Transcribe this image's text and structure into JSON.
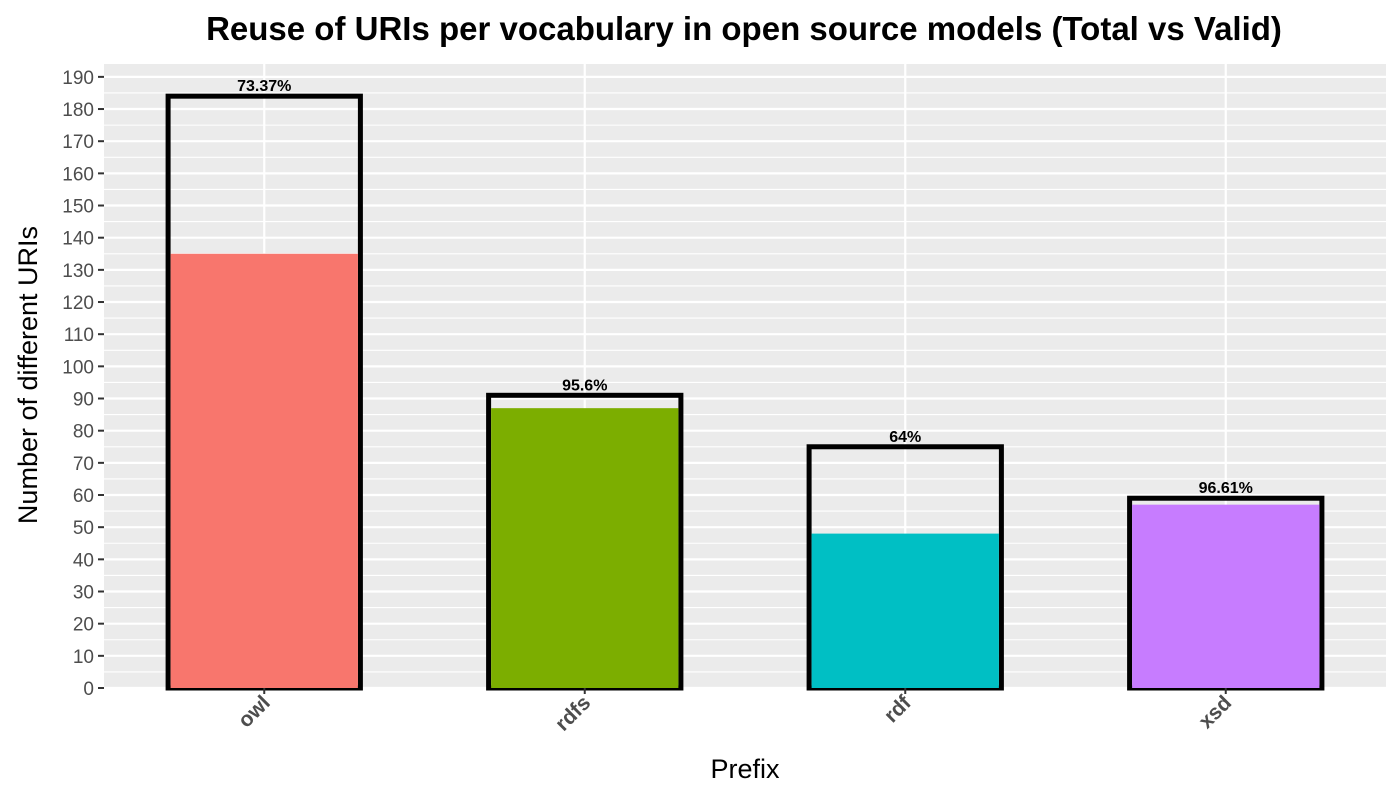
{
  "chart_data": {
    "type": "bar",
    "title": "Reuse of URIs per vocabulary in open source models (Total vs Valid)",
    "xlabel": "Prefix",
    "ylabel": "Number of different URIs",
    "ylim": [
      0,
      194
    ],
    "yticks": [
      0,
      10,
      20,
      30,
      40,
      50,
      60,
      70,
      80,
      90,
      100,
      110,
      120,
      130,
      140,
      150,
      160,
      170,
      180,
      190
    ],
    "grid": true,
    "categories": [
      "owl",
      "rdfs",
      "rdf",
      "xsd"
    ],
    "series": [
      {
        "values": [
          184,
          91,
          75,
          59
        ],
        "outline": true
      },
      {
        "values": [
          135,
          87,
          48,
          57
        ],
        "colors": [
          "#F8766D",
          "#7CAE00",
          "#00BFC4",
          "#C77CFF"
        ]
      }
    ],
    "bar_labels": [
      "73.37%",
      "95.6%",
      "64%",
      "96.61%"
    ],
    "panel_background": "#EBEBEB",
    "grid_color": "#FFFFFF",
    "outline_color": "#000000"
  }
}
